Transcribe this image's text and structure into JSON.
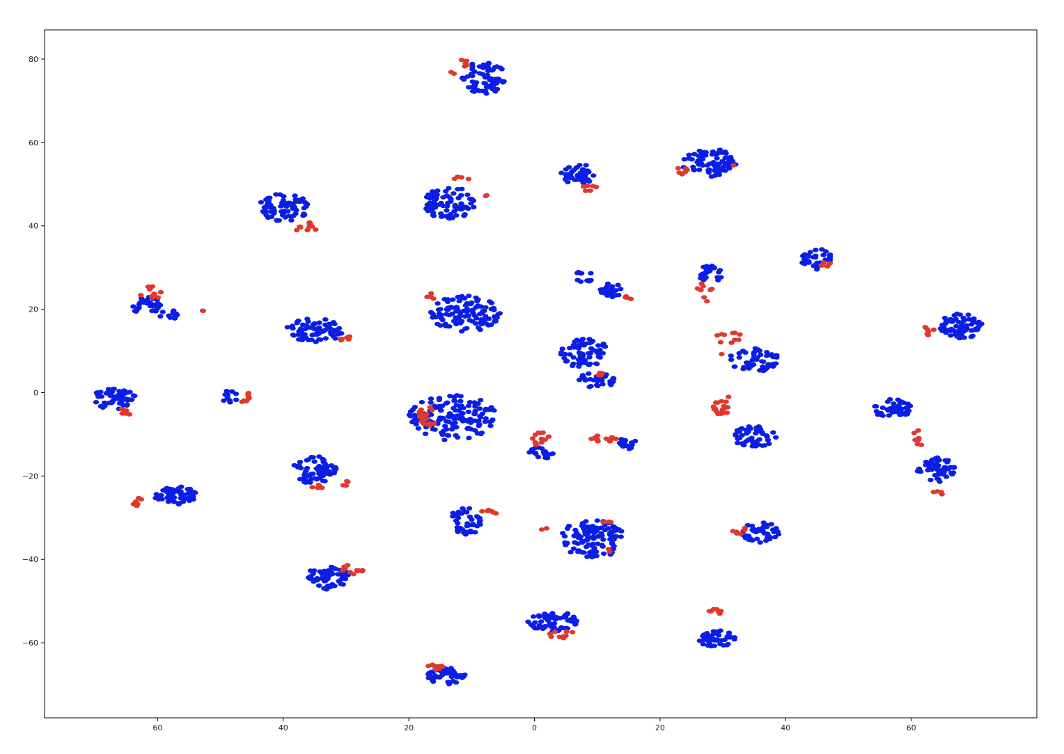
{
  "chart_data": {
    "type": "scatter",
    "title": "",
    "xlabel": "",
    "ylabel": "",
    "xlim": [
      -78,
      80
    ],
    "ylim": [
      -78,
      87
    ],
    "x_ticks": [
      -60,
      -40,
      -20,
      0,
      20,
      40,
      60
    ],
    "x_tick_labels": [
      "60",
      "40",
      "20",
      "0",
      "20",
      "40",
      "60"
    ],
    "y_ticks": [
      -60,
      -40,
      -20,
      0,
      20,
      40,
      60,
      80
    ],
    "y_tick_labels": [
      "−60",
      "−40",
      "−20",
      "0",
      "20",
      "40",
      "60",
      "80"
    ],
    "grid": false,
    "legend": "none",
    "colors": {
      "blue": "#0a1ee6",
      "red": "#e0392b",
      "axes": "#000000"
    },
    "series": [
      {
        "color": "blue",
        "clusters": [
          {
            "cx": -8,
            "cy": 75.5,
            "rx": 3.5,
            "ry": 4,
            "n": 70
          },
          {
            "cx": 7,
            "cy": 52.5,
            "rx": 2.8,
            "ry": 2.5,
            "n": 45
          },
          {
            "cx": 28,
            "cy": 55,
            "rx": 4.5,
            "ry": 3.5,
            "n": 75
          },
          {
            "cx": -40,
            "cy": 44.5,
            "rx": 4,
            "ry": 3.5,
            "n": 70
          },
          {
            "cx": -13.5,
            "cy": 45.5,
            "rx": 4,
            "ry": 4,
            "n": 80
          },
          {
            "cx": 45,
            "cy": 32,
            "rx": 2.5,
            "ry": 2.5,
            "n": 35
          },
          {
            "cx": 28,
            "cy": 28.5,
            "rx": 2,
            "ry": 2,
            "n": 25
          },
          {
            "cx": 8,
            "cy": 28,
            "rx": 1.5,
            "ry": 1.5,
            "n": 12
          },
          {
            "cx": 12,
            "cy": 24.5,
            "rx": 2,
            "ry": 2,
            "n": 25
          },
          {
            "cx": -62,
            "cy": 21,
            "rx": 2.5,
            "ry": 2,
            "n": 30
          },
          {
            "cx": -58,
            "cy": 19,
            "rx": 2,
            "ry": 1.3,
            "n": 12
          },
          {
            "cx": -11,
            "cy": 19,
            "rx": 5.5,
            "ry": 4.5,
            "n": 110
          },
          {
            "cx": -35,
            "cy": 15,
            "rx": 4.5,
            "ry": 3,
            "n": 75
          },
          {
            "cx": 68,
            "cy": 16,
            "rx": 3.5,
            "ry": 3,
            "n": 70
          },
          {
            "cx": 8,
            "cy": 9.5,
            "rx": 4,
            "ry": 3.5,
            "n": 65
          },
          {
            "cx": 10,
            "cy": 3,
            "rx": 3,
            "ry": 2,
            "n": 30
          },
          {
            "cx": 35,
            "cy": 8,
            "rx": 4,
            "ry": 3,
            "n": 55
          },
          {
            "cx": -67,
            "cy": -1.5,
            "rx": 3.5,
            "ry": 2.5,
            "n": 60
          },
          {
            "cx": -48.5,
            "cy": -1,
            "rx": 1.5,
            "ry": 1.5,
            "n": 12
          },
          {
            "cx": -13,
            "cy": -6,
            "rx": 7,
            "ry": 5.5,
            "n": 150
          },
          {
            "cx": 1,
            "cy": -14.5,
            "rx": 2,
            "ry": 1.5,
            "n": 20
          },
          {
            "cx": 15,
            "cy": -12,
            "rx": 1.5,
            "ry": 1.5,
            "n": 15
          },
          {
            "cx": 35,
            "cy": -10.5,
            "rx": 3.5,
            "ry": 2.5,
            "n": 50
          },
          {
            "cx": 57,
            "cy": -4,
            "rx": 3,
            "ry": 2.5,
            "n": 40
          },
          {
            "cx": 64,
            "cy": -18.5,
            "rx": 3,
            "ry": 3,
            "n": 55
          },
          {
            "cx": -35,
            "cy": -18.5,
            "rx": 3.5,
            "ry": 3.5,
            "n": 65
          },
          {
            "cx": -57,
            "cy": -25,
            "rx": 3.5,
            "ry": 2.5,
            "n": 55
          },
          {
            "cx": -11,
            "cy": -31,
            "rx": 2.5,
            "ry": 3.5,
            "n": 40
          },
          {
            "cx": 9.5,
            "cy": -35,
            "rx": 5.5,
            "ry": 4.5,
            "n": 110
          },
          {
            "cx": 36,
            "cy": -33.5,
            "rx": 3,
            "ry": 2.5,
            "n": 45
          },
          {
            "cx": -33,
            "cy": -44.5,
            "rx": 3.5,
            "ry": 3,
            "n": 60
          },
          {
            "cx": 3,
            "cy": -55,
            "rx": 4,
            "ry": 2.5,
            "n": 60
          },
          {
            "cx": 29,
            "cy": -59,
            "rx": 3,
            "ry": 2,
            "n": 45
          },
          {
            "cx": -14,
            "cy": -68,
            "rx": 3,
            "ry": 2,
            "n": 45
          }
        ]
      },
      {
        "color": "red",
        "clusters": [
          {
            "cx": -11,
            "cy": 78.5,
            "rx": 1.5,
            "ry": 1.5,
            "n": 5
          },
          {
            "cx": -12.5,
            "cy": 76.5,
            "rx": 1,
            "ry": 0.6,
            "n": 2
          },
          {
            "cx": 9,
            "cy": 49,
            "rx": 1.3,
            "ry": 1,
            "n": 7
          },
          {
            "cx": 23.5,
            "cy": 53,
            "rx": 1.2,
            "ry": 1.2,
            "n": 6
          },
          {
            "cx": 32,
            "cy": 54.5,
            "rx": 0.5,
            "ry": 0.5,
            "n": 1
          },
          {
            "cx": -36.5,
            "cy": 39.5,
            "rx": 2,
            "ry": 1.5,
            "n": 12
          },
          {
            "cx": -11.5,
            "cy": 51.5,
            "rx": 1.5,
            "ry": 0.5,
            "n": 4
          },
          {
            "cx": -8,
            "cy": 47.5,
            "rx": 0.5,
            "ry": 0.5,
            "n": 2
          },
          {
            "cx": -16.5,
            "cy": 23,
            "rx": 0.8,
            "ry": 1,
            "n": 5
          },
          {
            "cx": 15,
            "cy": 23,
            "rx": 1,
            "ry": 0.6,
            "n": 4
          },
          {
            "cx": 27,
            "cy": 24,
            "rx": 1.5,
            "ry": 2.5,
            "n": 9
          },
          {
            "cx": 46.5,
            "cy": 31,
            "rx": 1,
            "ry": 1,
            "n": 5
          },
          {
            "cx": -61,
            "cy": 24,
            "rx": 2,
            "ry": 1.5,
            "n": 10
          },
          {
            "cx": -52.5,
            "cy": 19.5,
            "rx": 0.5,
            "ry": 0.5,
            "n": 2
          },
          {
            "cx": -30,
            "cy": 13,
            "rx": 2,
            "ry": 0.5,
            "n": 6
          },
          {
            "cx": 31,
            "cy": 13,
            "rx": 2.5,
            "ry": 1.5,
            "n": 10
          },
          {
            "cx": 30,
            "cy": 9,
            "rx": 0.5,
            "ry": 0.5,
            "n": 1
          },
          {
            "cx": 63,
            "cy": 15,
            "rx": 1,
            "ry": 1.5,
            "n": 6
          },
          {
            "cx": 10,
            "cy": 4.5,
            "rx": 1,
            "ry": 0.5,
            "n": 4
          },
          {
            "cx": -65,
            "cy": -4.5,
            "rx": 1.2,
            "ry": 0.8,
            "n": 6
          },
          {
            "cx": -46,
            "cy": -1,
            "rx": 1,
            "ry": 1.5,
            "n": 8
          },
          {
            "cx": -17,
            "cy": -6,
            "rx": 1.5,
            "ry": 3,
            "n": 18
          },
          {
            "cx": 1,
            "cy": -11,
            "rx": 1.5,
            "ry": 2,
            "n": 12
          },
          {
            "cx": 11,
            "cy": -11,
            "rx": 2,
            "ry": 1,
            "n": 12
          },
          {
            "cx": 30,
            "cy": -3,
            "rx": 1.5,
            "ry": 2.5,
            "n": 18
          },
          {
            "cx": 61,
            "cy": -11,
            "rx": 1,
            "ry": 2,
            "n": 7
          },
          {
            "cx": 64.5,
            "cy": -24,
            "rx": 1,
            "ry": 0.5,
            "n": 4
          },
          {
            "cx": -34,
            "cy": -22.5,
            "rx": 1.5,
            "ry": 0.5,
            "n": 5
          },
          {
            "cx": -30,
            "cy": -22,
            "rx": 1,
            "ry": 0.8,
            "n": 4
          },
          {
            "cx": -63,
            "cy": -26,
            "rx": 1,
            "ry": 1.5,
            "n": 6
          },
          {
            "cx": -6.5,
            "cy": -28.5,
            "rx": 2,
            "ry": 0.5,
            "n": 6
          },
          {
            "cx": 1.5,
            "cy": -32.5,
            "rx": 0.6,
            "ry": 0.5,
            "n": 2
          },
          {
            "cx": 12,
            "cy": -31,
            "rx": 1.2,
            "ry": 0.5,
            "n": 4
          },
          {
            "cx": 12,
            "cy": -38,
            "rx": 0.5,
            "ry": 0.6,
            "n": 2
          },
          {
            "cx": 32.5,
            "cy": -33,
            "rx": 1.5,
            "ry": 1,
            "n": 6
          },
          {
            "cx": -29,
            "cy": -42.5,
            "rx": 1.8,
            "ry": 1.5,
            "n": 12
          },
          {
            "cx": 4,
            "cy": -58,
            "rx": 3,
            "ry": 1,
            "n": 10
          },
          {
            "cx": 29,
            "cy": -52.5,
            "rx": 1.5,
            "ry": 0.6,
            "n": 8
          },
          {
            "cx": -16,
            "cy": -65.5,
            "rx": 1.5,
            "ry": 1,
            "n": 10
          }
        ]
      }
    ]
  }
}
